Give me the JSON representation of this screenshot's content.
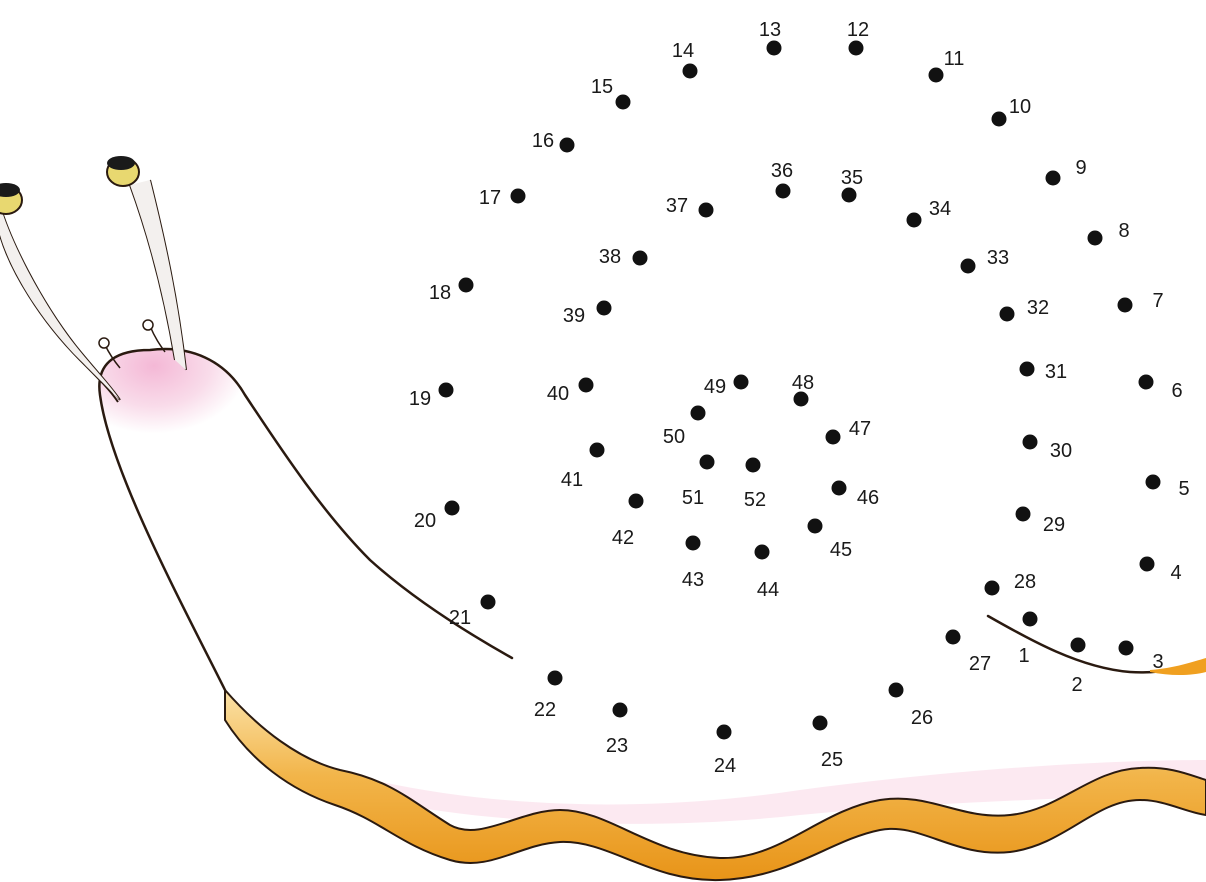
{
  "puzzle": {
    "dots": [
      {
        "n": "1"
      },
      {
        "n": "2"
      },
      {
        "n": "3"
      },
      {
        "n": "4"
      },
      {
        "n": "5"
      },
      {
        "n": "6"
      },
      {
        "n": "7"
      },
      {
        "n": "8"
      },
      {
        "n": "9"
      },
      {
        "n": "10"
      },
      {
        "n": "11"
      },
      {
        "n": "12"
      },
      {
        "n": "13"
      },
      {
        "n": "14"
      },
      {
        "n": "15"
      },
      {
        "n": "16"
      },
      {
        "n": "17"
      },
      {
        "n": "18"
      },
      {
        "n": "19"
      },
      {
        "n": "20"
      },
      {
        "n": "21"
      },
      {
        "n": "22"
      },
      {
        "n": "23"
      },
      {
        "n": "24"
      },
      {
        "n": "25"
      },
      {
        "n": "26"
      },
      {
        "n": "27"
      },
      {
        "n": "28"
      },
      {
        "n": "29"
      },
      {
        "n": "30"
      },
      {
        "n": "31"
      },
      {
        "n": "32"
      },
      {
        "n": "33"
      },
      {
        "n": "34"
      },
      {
        "n": "35"
      },
      {
        "n": "36"
      },
      {
        "n": "37"
      },
      {
        "n": "38"
      },
      {
        "n": "39"
      },
      {
        "n": "40"
      },
      {
        "n": "41"
      },
      {
        "n": "42"
      },
      {
        "n": "43"
      },
      {
        "n": "44"
      },
      {
        "n": "45"
      },
      {
        "n": "46"
      },
      {
        "n": "47"
      },
      {
        "n": "48"
      },
      {
        "n": "49"
      },
      {
        "n": "50"
      },
      {
        "n": "51"
      },
      {
        "n": "52"
      }
    ]
  },
  "colors": {
    "body_pink": "#f6c6dc",
    "body_white": "#ffffff",
    "foot_orange": "#f0a020",
    "foot_light": "#f8d890",
    "outline": "#2a1a10",
    "dot": "#111111",
    "eye_yellow": "#e8d870"
  }
}
